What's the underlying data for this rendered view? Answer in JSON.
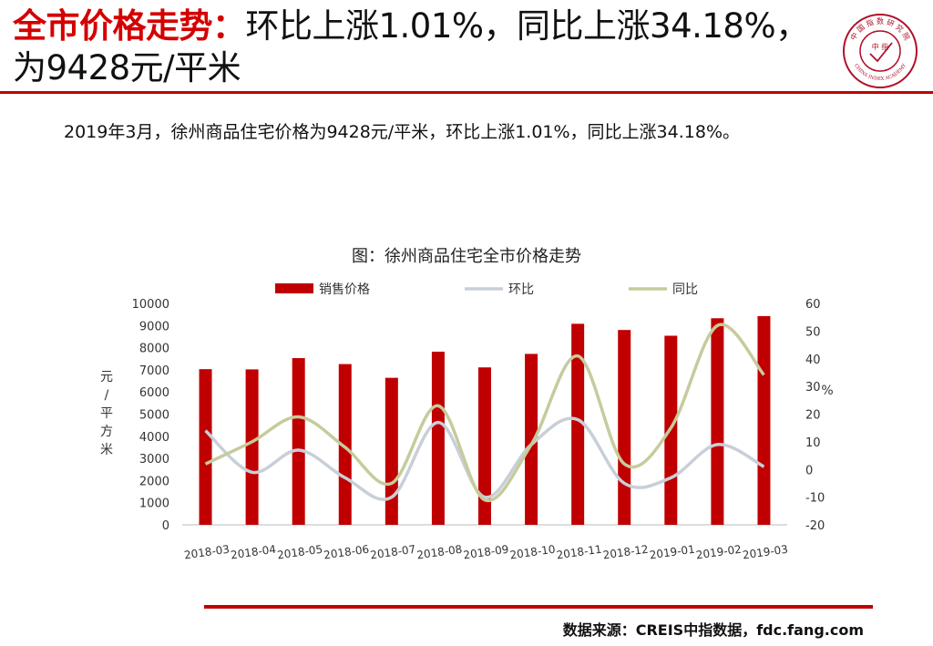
{
  "header": {
    "title_red": "全市价格走势：",
    "title_black": "环比上涨1.01%，同比上涨34.18%，为9428元/平米"
  },
  "logo": {
    "arc_text": "中 国 指 数 研 究 院",
    "center_text": "中 指",
    "english": "CHINA INDEX ACADEMY",
    "color": "#b0102a"
  },
  "summary": "2019年3月，徐州商品住宅价格为9428元/平米，环比上涨1.01%，同比上涨34.18%。",
  "source": "数据来源：CREIS中指数据，fdc.fang.com",
  "colors": {
    "bar": "#c00000",
    "mom": "#c8cfd8",
    "yoy": "#c6cb9c",
    "accent": "#c00000"
  },
  "chart_data": {
    "type": "bar",
    "title": "图：徐州商品住宅全市价格走势",
    "categories": [
      "2018-03",
      "2018-04",
      "2018-05",
      "2018-06",
      "2018-07",
      "2018-08",
      "2018-09",
      "2018-10",
      "2018-11",
      "2018-12",
      "2019-01",
      "2019-02",
      "2019-03"
    ],
    "series": [
      {
        "name": "销售价格",
        "type": "bar",
        "axis": "left",
        "values": [
          7030,
          7020,
          7530,
          7260,
          6640,
          7820,
          7110,
          7720,
          9080,
          8800,
          8540,
          9330,
          9428
        ]
      },
      {
        "name": "环比",
        "type": "line",
        "axis": "right",
        "values": [
          14,
          -1,
          7,
          -3,
          -10,
          17,
          -10,
          9,
          18,
          -5,
          -3,
          9,
          1.01
        ]
      },
      {
        "name": "同比",
        "type": "line",
        "axis": "right",
        "values": [
          2,
          10,
          19,
          8,
          -5,
          23,
          -11,
          9,
          41,
          2,
          15,
          52,
          34.18
        ]
      }
    ],
    "ylabel": "元/平方米",
    "ylim": [
      0,
      10000
    ],
    "yticks": [
      0,
      1000,
      2000,
      3000,
      4000,
      5000,
      6000,
      7000,
      8000,
      9000,
      10000
    ],
    "y2label": "%",
    "y2lim": [
      -20,
      60
    ],
    "y2ticks": [
      -20,
      -10,
      0,
      10,
      20,
      30,
      40,
      50,
      60
    ],
    "legend_position": "top",
    "grid": false
  }
}
